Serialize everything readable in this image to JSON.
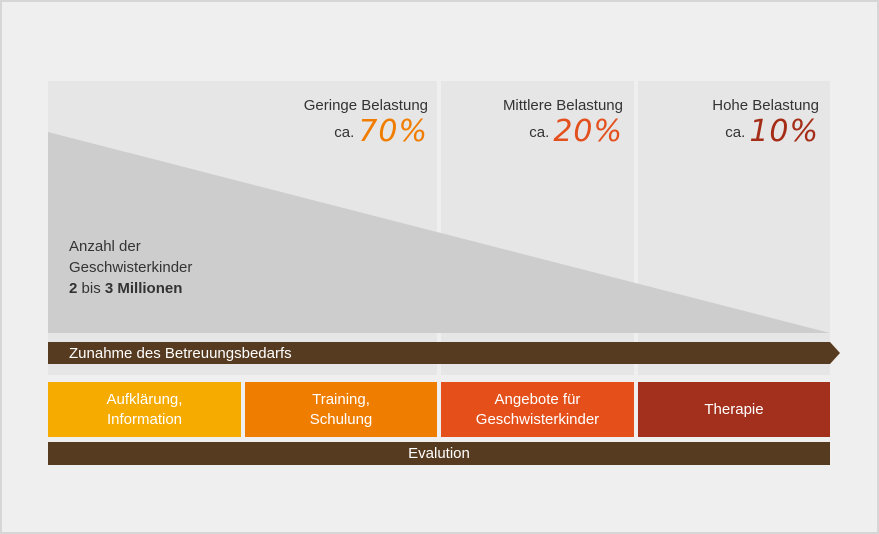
{
  "columns": [
    {
      "heading": "Geringe Belastung",
      "prefix": "ca.",
      "percent": "70%",
      "color": "#f07d00"
    },
    {
      "heading": "Mittlere Belastung",
      "prefix": "ca.",
      "percent": "20%",
      "color": "#e3501e"
    },
    {
      "heading": "Hohe Belastung",
      "prefix": "ca.",
      "percent": "10%",
      "color": "#a52d18"
    }
  ],
  "count_label": {
    "line1": "Anzahl der",
    "line2": "Geschwisterkinder",
    "num1": "2",
    "mid": "bis",
    "num2": "3 Millionen"
  },
  "arrow": {
    "label": "Zunahme des Betreuungsbedarfs",
    "color": "#573b20"
  },
  "boxes": [
    {
      "label": "Aufklärung,\nInformation",
      "color": "#f5ab00"
    },
    {
      "label": "Training,\nSchulung",
      "color": "#ef7d00"
    },
    {
      "label": "Angebote für\nGeschwisterkinder",
      "color": "#e5501a"
    },
    {
      "label": "Therapie",
      "color": "#a3301c"
    }
  ],
  "evaluation": {
    "label": "Evalution",
    "color": "#573b20"
  },
  "colors": {
    "background": "#efefef",
    "panel": "#e6e6e6",
    "triangle": "#cdcdcd"
  }
}
